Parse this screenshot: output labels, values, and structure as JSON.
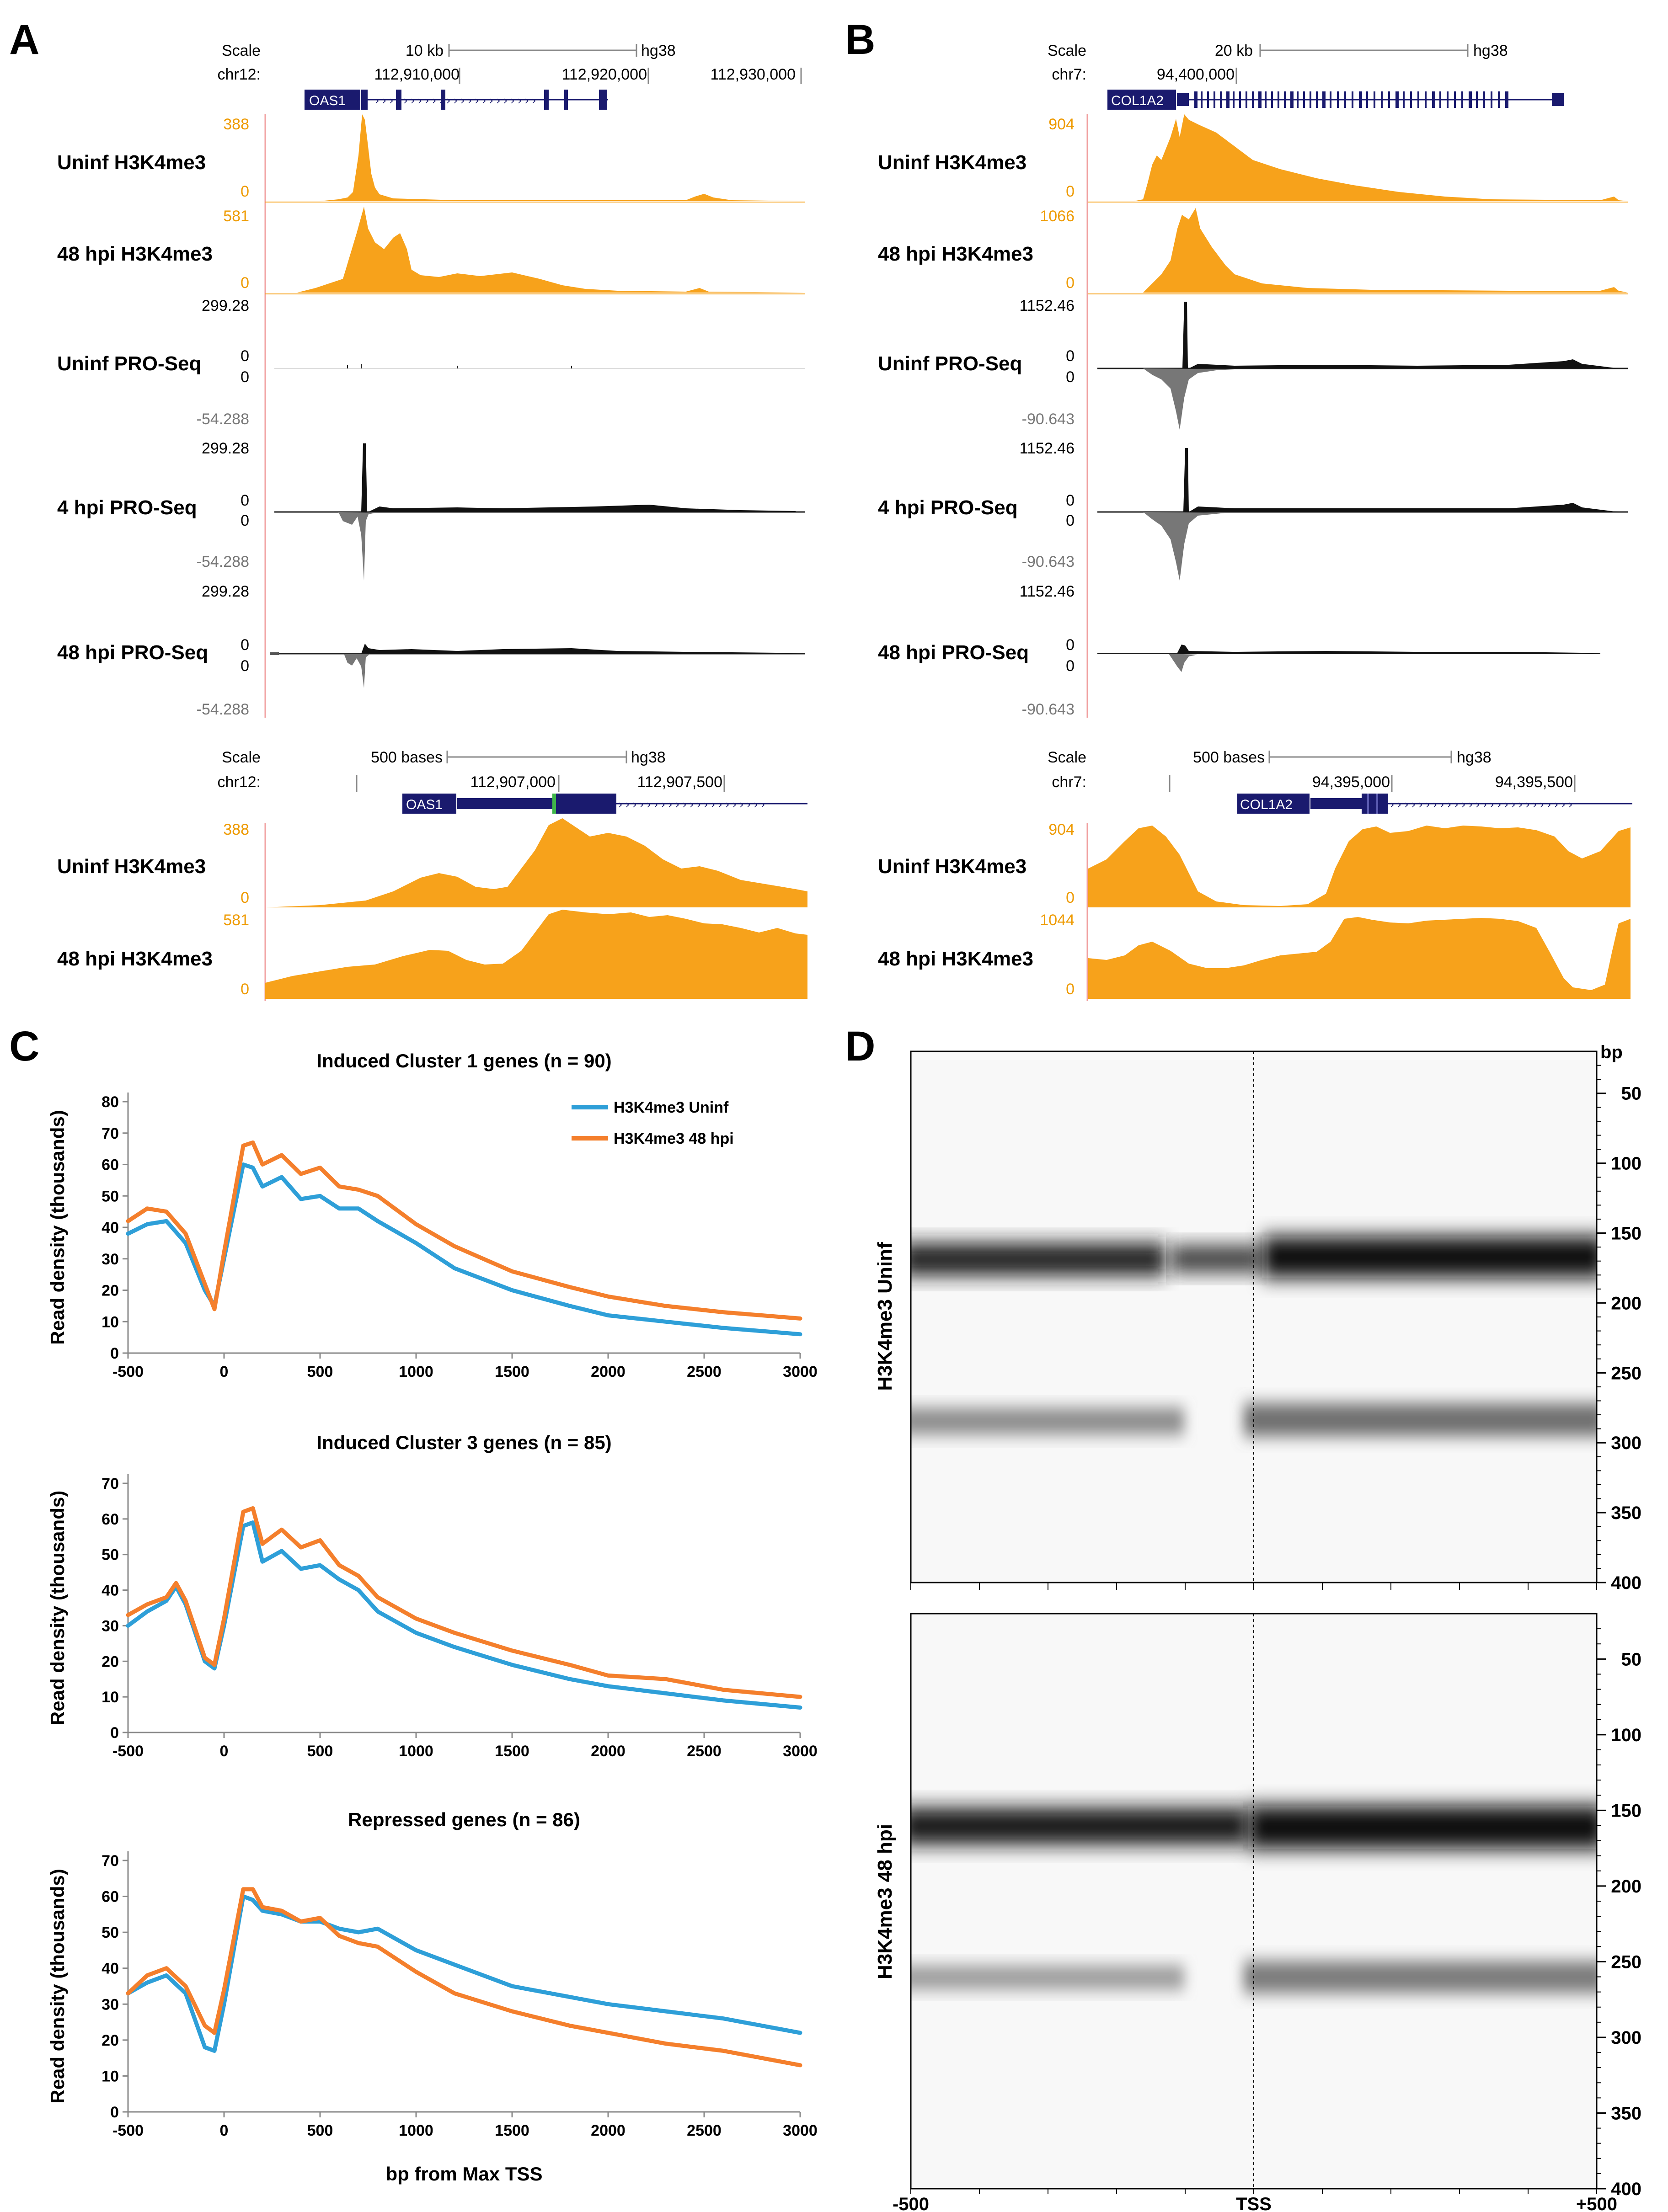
{
  "panelA": {
    "label": "A",
    "browser1": {
      "scale_label": "Scale",
      "scale_bar": "10 kb",
      "assembly": "hg38",
      "chrom": "chr12:",
      "coords": [
        "112,910,000",
        "112,920,000",
        "112,930,000"
      ],
      "gene": "OAS1"
    },
    "tracks": [
      {
        "name": "Uninf H3K4me3",
        "max": "388",
        "min": "0"
      },
      {
        "name": "48 hpi H3K4me3",
        "max": "581",
        "min": "0"
      },
      {
        "name": "Uninf PRO-Seq",
        "max": "299.28",
        "mid_top": "0",
        "mid_bottom": "0",
        "min": "-54.288"
      },
      {
        "name": "4 hpi PRO-Seq",
        "max": "299.28",
        "mid_top": "0",
        "mid_bottom": "0",
        "min": "-54.288"
      },
      {
        "name": "48 hpi PRO-Seq",
        "max": "299.28",
        "mid_top": "0",
        "mid_bottom": "0",
        "min": "-54.288"
      }
    ],
    "browser2": {
      "scale_label": "Scale",
      "scale_bar": "500 bases",
      "assembly": "hg38",
      "chrom": "chr12:",
      "coords": [
        "112,907,000",
        "112,907,500"
      ],
      "gene": "OAS1"
    },
    "zoom_tracks": [
      {
        "name": "Uninf H3K4me3",
        "max": "388",
        "min": "0"
      },
      {
        "name": "48 hpi H3K4me3",
        "max": "581",
        "min": "0"
      }
    ]
  },
  "panelB": {
    "label": "B",
    "browser1": {
      "scale_label": "Scale",
      "scale_bar": "20 kb",
      "assembly": "hg38",
      "chrom": "chr7:",
      "coords": [
        "94,400,000"
      ],
      "gene": "COL1A2"
    },
    "tracks": [
      {
        "name": "Uninf H3K4me3",
        "max": "904",
        "min": "0"
      },
      {
        "name": "48 hpi H3K4me3",
        "max": "1066",
        "min": "0"
      },
      {
        "name": "Uninf PRO-Seq",
        "max": "1152.46",
        "mid_top": "0",
        "mid_bottom": "0",
        "min": "-90.643"
      },
      {
        "name": "4 hpi PRO-Seq",
        "max": "1152.46",
        "mid_top": "0",
        "mid_bottom": "0",
        "min": "-90.643"
      },
      {
        "name": "48 hpi PRO-Seq",
        "max": "1152.46",
        "mid_top": "0",
        "mid_bottom": "0",
        "min": "-90.643"
      }
    ],
    "browser2": {
      "scale_label": "Scale",
      "scale_bar": "500 bases",
      "assembly": "hg38",
      "chrom": "chr7:",
      "coords": [
        "94,395,000",
        "94,395,500"
      ],
      "gene": "COL1A2"
    },
    "zoom_tracks": [
      {
        "name": "Uninf H3K4me3",
        "max": "904",
        "min": "0"
      },
      {
        "name": "48 hpi H3K4me3",
        "max": "1044",
        "min": "0"
      }
    ]
  },
  "panelC": {
    "label": "C",
    "ylabel": "Read density (thousands)",
    "xlabel": "bp from Max TSS",
    "colors": {
      "uninf": "#2e9fd8",
      "hpi48": "#f47f2c"
    }
  },
  "chart_data": [
    {
      "type": "line",
      "title": "Induced Cluster 1 genes (n = 90)",
      "xlabel": "",
      "ylabel": "Read density (thousands)",
      "xlim": [
        -500,
        3000
      ],
      "ylim": [
        0,
        80
      ],
      "yticks": [
        0,
        10,
        20,
        30,
        40,
        50,
        60,
        70,
        80
      ],
      "xticks": [
        -500,
        0,
        500,
        1000,
        1500,
        2000,
        2500,
        3000
      ],
      "legend": "top-right",
      "x": [
        -500,
        -400,
        -300,
        -200,
        -100,
        -50,
        0,
        100,
        150,
        200,
        300,
        400,
        500,
        600,
        700,
        800,
        1000,
        1200,
        1500,
        1800,
        2000,
        2300,
        2600,
        3000
      ],
      "series": [
        {
          "name": "H3K4me3 Uninf",
          "values": [
            38,
            41,
            42,
            35,
            20,
            15,
            30,
            60,
            59,
            53,
            56,
            49,
            50,
            46,
            46,
            42,
            35,
            27,
            20,
            15,
            12,
            10,
            8,
            6
          ]
        },
        {
          "name": "H3K4me3 48 hpi",
          "values": [
            42,
            46,
            45,
            38,
            22,
            14,
            32,
            66,
            67,
            60,
            63,
            57,
            59,
            53,
            52,
            50,
            41,
            34,
            26,
            21,
            18,
            15,
            13,
            11
          ]
        }
      ]
    },
    {
      "type": "line",
      "title": "Induced Cluster 3 genes (n = 85)",
      "xlabel": "",
      "ylabel": "Read density (thousands)",
      "xlim": [
        -500,
        3000
      ],
      "ylim": [
        0,
        70
      ],
      "yticks": [
        0,
        10,
        20,
        30,
        40,
        50,
        60,
        70
      ],
      "xticks": [
        -500,
        0,
        500,
        1000,
        1500,
        2000,
        2500,
        3000
      ],
      "legend": "none",
      "x": [
        -500,
        -400,
        -300,
        -250,
        -200,
        -100,
        -50,
        0,
        100,
        150,
        200,
        300,
        400,
        500,
        600,
        700,
        800,
        1000,
        1200,
        1500,
        1800,
        2000,
        2300,
        2600,
        3000
      ],
      "series": [
        {
          "name": "H3K4me3 Uninf",
          "values": [
            30,
            34,
            37,
            41,
            36,
            20,
            18,
            30,
            58,
            59,
            48,
            51,
            46,
            47,
            43,
            40,
            34,
            28,
            24,
            19,
            15,
            13,
            11,
            9,
            7
          ]
        },
        {
          "name": "H3K4me3 48 hpi",
          "values": [
            33,
            36,
            38,
            42,
            37,
            21,
            19,
            32,
            62,
            63,
            53,
            57,
            52,
            54,
            47,
            44,
            38,
            32,
            28,
            23,
            19,
            16,
            15,
            12,
            10
          ]
        }
      ]
    },
    {
      "type": "line",
      "title": "Repressed genes (n = 86)",
      "xlabel": "bp from Max TSS",
      "ylabel": "Read density (thousands)",
      "xlim": [
        -500,
        3000
      ],
      "ylim": [
        0,
        70
      ],
      "yticks": [
        0,
        10,
        20,
        30,
        40,
        50,
        60,
        70
      ],
      "xticks": [
        -500,
        0,
        500,
        1000,
        1500,
        2000,
        2500,
        3000
      ],
      "legend": "none",
      "x": [
        -500,
        -400,
        -300,
        -200,
        -100,
        -50,
        0,
        100,
        150,
        200,
        300,
        400,
        500,
        600,
        700,
        800,
        1000,
        1200,
        1500,
        1800,
        2000,
        2300,
        2600,
        3000
      ],
      "series": [
        {
          "name": "H3K4me3 Uninf",
          "values": [
            33,
            36,
            38,
            33,
            18,
            17,
            30,
            60,
            59,
            56,
            55,
            53,
            53,
            51,
            50,
            51,
            45,
            41,
            35,
            32,
            30,
            28,
            26,
            22
          ]
        },
        {
          "name": "H3K4me3 48 hpi",
          "values": [
            33,
            38,
            40,
            35,
            24,
            22,
            34,
            62,
            62,
            57,
            56,
            53,
            54,
            49,
            47,
            46,
            39,
            33,
            28,
            24,
            22,
            19,
            17,
            13
          ]
        }
      ]
    }
  ],
  "panelD": {
    "label": "D",
    "bp_label": "bp",
    "rows": [
      {
        "name": "H3K4me3 Uninf",
        "yticks": [
          "50",
          "100",
          "150",
          "200",
          "250",
          "300",
          "350",
          "400"
        ]
      },
      {
        "name": "H3K4me3 48 hpi",
        "yticks": [
          "50",
          "100",
          "150",
          "200",
          "250",
          "300",
          "350",
          "400"
        ]
      }
    ],
    "xticks": [
      "-500",
      "TSS",
      "+500"
    ]
  }
}
